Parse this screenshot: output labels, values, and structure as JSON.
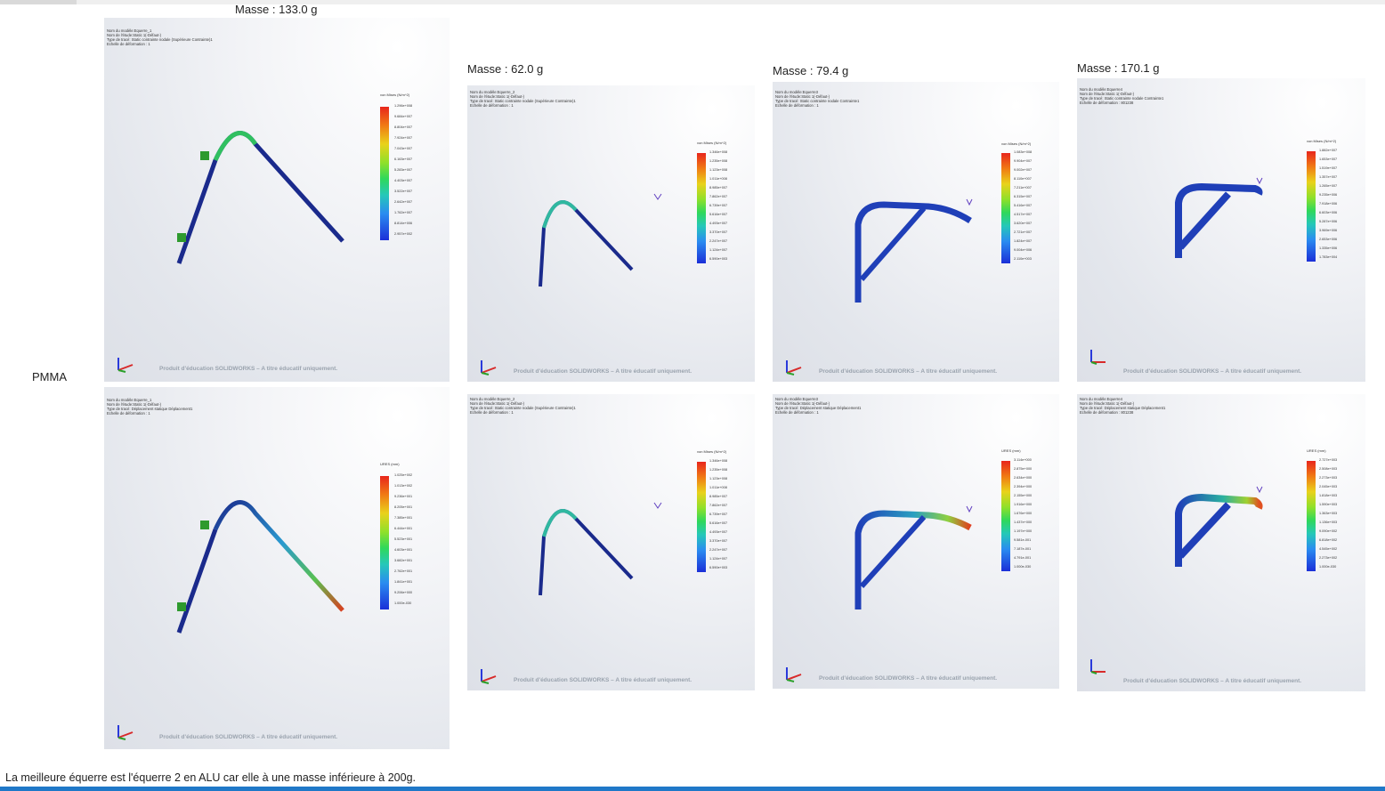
{
  "masses": [
    "Masse : 133.0 g",
    "Masse : 62.0 g",
    "Masse : 79.4 g",
    "Masse : 170.1 g"
  ],
  "row_label": "PMMA",
  "conclusion": "La meilleure équerre est l'équerre 2 en ALU car elle à une masse inférieure à 200g.",
  "watermark": "Produit d'éducation SOLIDWORKS – A titre éducatif uniquement.",
  "panels": [
    {
      "header": [
        "Nom du modèle:Equerre_1",
        "Nom de l'étude:Static 1(-Défaut-)",
        "Type de tracé: Static contrainte nodale (Supérieure Contrainte)1",
        "Echelle de déformation : 1"
      ],
      "legend_title": "von Mises (N/m^2)",
      "ticks": [
        "1.296e+008",
        "9.684e+007",
        "8.804e+007",
        "7.924e+007",
        "7.043e+007",
        "6.163e+007",
        "5.283e+007",
        "4.403e+007",
        "3.522e+007",
        "2.642e+007",
        "1.762e+007",
        "8.814e+006",
        "2.957e+002"
      ],
      "shape_color": "#1a2a8c"
    },
    {
      "header": [
        "Nom du modèle:Equerre_2",
        "Nom de l'étude:Static 1(-Défaut-)",
        "Type de tracé: Static contrainte nodale (Supérieure Contrainte)1",
        "Echelle de déformation : 1"
      ],
      "legend_title": "von Mises (N/m^2)",
      "ticks": [
        "1.346e+008",
        "1.235e+008",
        "1.123e+008",
        "1.011e+008",
        "8.985e+007",
        "7.862e+007",
        "6.739e+007",
        "5.616e+007",
        "4.493e+007",
        "3.370e+007",
        "2.247e+007",
        "1.124e+007",
        "6.590e+003"
      ],
      "shape_color": "#1a2a8c"
    },
    {
      "header": [
        "Nom du modèle:Equerre3",
        "Nom de l'étude:Static 1(-Défaut-)",
        "Type de tracé: Static contrainte nodale Contrainte1",
        "Echelle de déformation : 1"
      ],
      "legend_title": "von Mises (N/m^2)",
      "ticks": [
        "1.083e+008",
        "9.904e+007",
        "9.002e+007",
        "8.110e+007",
        "7.211e+007",
        "6.315e+007",
        "5.416e+007",
        "4.517e+007",
        "3.620e+007",
        "2.721e+007",
        "1.824e+007",
        "9.004e+006",
        "2.110e+003"
      ],
      "shape_color": "#1f3fb8"
    },
    {
      "header": [
        "Nom du modèle:Equerre4",
        "Nom de l'étude:Static 1(-Défaut-)",
        "Type de tracé: Static contrainte nodale Contrainte1",
        "Echelle de déformation : 801238"
      ],
      "legend_title": "von Mises (N/m^2)",
      "ticks": [
        "1.882e+007",
        "1.653e+007",
        "1.519e+007",
        "1.357e+007",
        "1.265e+007",
        "9.235e+006",
        "7.918e+006",
        "6.603e+006",
        "5.287e+006",
        "3.969e+006",
        "2.653e+006",
        "1.335e+006",
        "1.783e+004"
      ],
      "shape_color": "#1f3fb8"
    },
    {
      "header": [
        "Nom du modèle:Equerre_1",
        "Nom de l'étude:Static 1(-Défaut-)",
        "Type de tracé: Déplacement statique Déplacement1",
        "Echelle de déformation : 1"
      ],
      "legend_title": "URES (mm)",
      "ticks": [
        "1.025e+002",
        "1.013e+002",
        "9.236e+001",
        "8.205e+001",
        "7.385e+001",
        "6.444e+001",
        "5.523e+001",
        "4.603e+001",
        "3.682e+001",
        "2.762e+001",
        "1.841e+001",
        "9.206e+000",
        "1.000e-030"
      ],
      "shape_color": "#1a2a8c"
    },
    {
      "header": [
        "Nom du modèle:Equerre_2",
        "Nom de l'étude:Static 1(-Défaut-)",
        "Type de tracé: Static contrainte nodale (Supérieure Contrainte)1",
        "Echelle de déformation : 1"
      ],
      "legend_title": "von Mises (N/m^2)",
      "ticks": [
        "1.346e+008",
        "1.235e+008",
        "1.123e+008",
        "1.011e+008",
        "8.985e+007",
        "7.862e+007",
        "6.739e+007",
        "5.616e+007",
        "4.493e+007",
        "3.370e+007",
        "2.247e+007",
        "1.124e+007",
        "6.590e+003"
      ],
      "shape_color": "#1a2a8c"
    },
    {
      "header": [
        "Nom du modèle:Equerre3",
        "Nom de l'étude:Static 1(-Défaut-)",
        "Type de tracé: Déplacement statique Déplacement1",
        "Echelle de déformation : 1"
      ],
      "legend_title": "URES (mm)",
      "ticks": [
        "3.114e+000",
        "2.875e+000",
        "2.634e+000",
        "2.394e+000",
        "2.155e+000",
        "1.916e+000",
        "1.676e+000",
        "1.437e+000",
        "1.197e+000",
        "9.581e-001",
        "7.187e-001",
        "4.791e-001",
        "1.000e-030"
      ],
      "shape_color": "#1f3fb8"
    },
    {
      "header": [
        "Nom du modèle:Equerre4",
        "Nom de l'étude:Static 1(-Défaut-)",
        "Type de tracé: Déplacement statique Déplacement1",
        "Echelle de déformation : 801238"
      ],
      "legend_title": "URES (mm)",
      "ticks": [
        "2.727e+003",
        "2.508e+003",
        "2.273e+003",
        "2.045e+003",
        "1.818e+003",
        "1.590e+003",
        "1.363e+003",
        "1.136e+003",
        "9.090e+002",
        "6.818e+002",
        "4.545e+002",
        "2.273e+002",
        "1.000e-030"
      ],
      "shape_color": "#1f3fb8"
    }
  ]
}
